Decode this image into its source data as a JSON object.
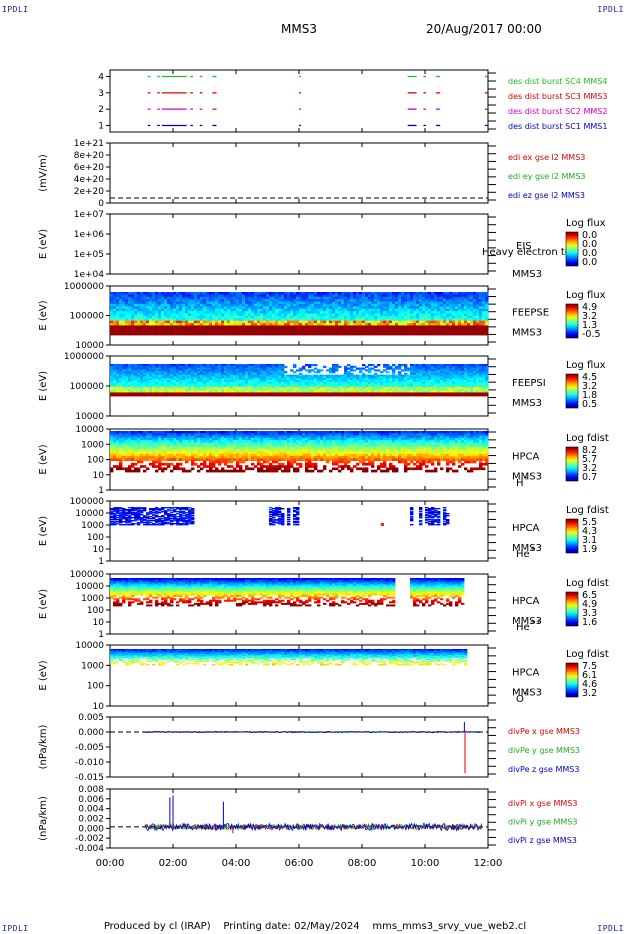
{
  "header": {
    "corner_label": "IPDLI",
    "spacecraft": "MMS3",
    "datetime": "20/Aug/2017 00:00"
  },
  "footer": {
    "produced_by": "Produced by cl (IRAP)",
    "printing_date": "Printing date: 02/May/2024",
    "script": "mms_mms3_srvy_vue_web2.cl"
  },
  "chart_data": [
    {
      "id": "burst",
      "type": "line",
      "ylabel": "",
      "y_ticks": [
        "4",
        "3",
        "2",
        "1"
      ],
      "ylim": [
        0.6,
        4.4
      ],
      "series": [
        {
          "name": "des dist burst SC1 MMS1",
          "color": "#0000cc",
          "level": 1
        },
        {
          "name": "des dist burst SC2 MMS2",
          "color": "#cc00cc",
          "level": 2
        },
        {
          "name": "des dist burst SC3 MMS3",
          "color": "#dd0000",
          "level": 3
        },
        {
          "name": "des dist burst SC4 MMS4",
          "color": "#22bb22",
          "level": 4
        }
      ],
      "intervals_hours": [
        [
          1.2,
          1.25
        ],
        [
          1.5,
          1.55
        ],
        [
          1.65,
          2.4
        ],
        [
          2.55,
          2.6
        ],
        [
          2.85,
          2.9
        ],
        [
          3.25,
          3.35
        ],
        [
          6.0,
          6.03
        ],
        [
          9.45,
          9.7
        ],
        [
          9.95,
          10.0
        ],
        [
          10.35,
          10.45
        ],
        [
          11.9,
          11.95
        ]
      ]
    },
    {
      "id": "edi",
      "type": "line",
      "ylabel": "(mV/m)",
      "y_ticks": [
        "1e+21",
        "8e+20",
        "6e+20",
        "4e+20",
        "2e+20",
        "0"
      ],
      "ylim": [
        0,
        1e+21
      ],
      "series": [
        {
          "name": "edi ex gse l2 MMS3",
          "color": "#dd0000"
        },
        {
          "name": "edi ey gse l2 MMS3",
          "color": "#22aa22"
        },
        {
          "name": "edi ez gse l2 MMS3",
          "color": "#0000cc"
        }
      ],
      "value": 0
    },
    {
      "id": "eis",
      "type": "heatmap",
      "ylabel": "E (eV)",
      "y_ticks": [
        "1e+07",
        "1e+06",
        "1e+05",
        "1e+04"
      ],
      "label": "EIS",
      "sc": "MMS3",
      "overlay_text": "Heavy electron to",
      "cbar_title": "Log flux",
      "cbar_ticks": [
        "0.0",
        "0.0",
        "0.0",
        "0.0"
      ],
      "empty": true
    },
    {
      "id": "feeps_e",
      "type": "heatmap",
      "ylabel": "E (eV)",
      "y_ticks": [
        "1000000",
        "100000",
        "10000"
      ],
      "label": "FEEPSE",
      "sc": "MMS3",
      "cbar_title": "Log flux",
      "cbar_ticks": [
        "4.9",
        "3.2",
        "1.3",
        "-0.5"
      ]
    },
    {
      "id": "feeps_i",
      "type": "heatmap",
      "ylabel": "E (eV)",
      "y_ticks": [
        "1000000",
        "100000",
        "10000"
      ],
      "label": "FEEPSI",
      "sc": "MMS3",
      "cbar_title": "Log flux",
      "cbar_ticks": [
        "4.5",
        "3.2",
        "1.8",
        "0.5"
      ]
    },
    {
      "id": "hpca_h",
      "type": "heatmap",
      "ylabel": "E (eV)",
      "y_ticks": [
        "10000",
        "1000",
        "100",
        "10",
        "1"
      ],
      "label": "HPCA",
      "sc": "MMS3",
      "species": "H",
      "charge": "+",
      "cbar_title": "Log fdist",
      "cbar_ticks": [
        "8.2",
        "5.7",
        "3.2",
        "0.7"
      ]
    },
    {
      "id": "hpca_he1",
      "type": "heatmap",
      "ylabel": "E (eV)",
      "y_ticks": [
        "100000",
        "10000",
        "1000",
        "100",
        "10",
        "1"
      ],
      "label": "HPCA",
      "sc": "MMS3",
      "species": "He",
      "charge": "+",
      "cbar_title": "Log fdist",
      "cbar_ticks": [
        "5.5",
        "4.3",
        "3.1",
        "1.9"
      ]
    },
    {
      "id": "hpca_he2",
      "type": "heatmap",
      "ylabel": "E (eV)",
      "y_ticks": [
        "100000",
        "10000",
        "1000",
        "100",
        "10",
        "1"
      ],
      "label": "HPCA",
      "sc": "MMS3",
      "species": "He",
      "charge": "++",
      "cbar_title": "Log fdist",
      "cbar_ticks": [
        "6.5",
        "4.9",
        "3.3",
        "1.6"
      ]
    },
    {
      "id": "hpca_o",
      "type": "heatmap",
      "ylabel": "E (eV)",
      "y_ticks": [
        "10000",
        "1000",
        "100",
        "10"
      ],
      "label": "HPCA",
      "sc": "MMS3",
      "species": "O",
      "charge": "+",
      "cbar_title": "Log fdist",
      "cbar_ticks": [
        "7.5",
        "6.1",
        "4.6",
        "3.2"
      ]
    },
    {
      "id": "divpe",
      "type": "line",
      "ylabel": "(nPa/km)",
      "y_ticks": [
        "0.005",
        "0.000",
        "-0.005",
        "-0.010",
        "-0.015"
      ],
      "ylim": [
        -0.018,
        0.006
      ],
      "series": [
        {
          "name": "divPe x gse MMS3",
          "color": "#dd0000"
        },
        {
          "name": "divPe y gse MMS3",
          "color": "#22aa22"
        },
        {
          "name": "divPe z gse MMS3",
          "color": "#0000cc"
        }
      ],
      "spikes": [
        {
          "t": 11.25,
          "series": 2,
          "value": 0.004
        },
        {
          "t": 11.27,
          "series": 0,
          "value": -0.0165
        }
      ]
    },
    {
      "id": "divpi",
      "type": "line",
      "ylabel": "(nPa/km)",
      "y_ticks": [
        "0.008",
        "0.006",
        "0.004",
        "0.002",
        "0.000",
        "-0.002",
        "-0.004"
      ],
      "ylim": [
        -0.005,
        0.009
      ],
      "series": [
        {
          "name": "divPi x gse MMS3",
          "color": "#dd0000"
        },
        {
          "name": "divPi y gse MMS3",
          "color": "#22aa22"
        },
        {
          "name": "divPi z gse MMS3",
          "color": "#0000cc"
        }
      ],
      "spikes": [
        {
          "t": 1.9,
          "series": 2,
          "value": 0.007
        },
        {
          "t": 2.0,
          "series": 2,
          "value": 0.0075
        },
        {
          "t": 3.6,
          "series": 2,
          "value": 0.006
        },
        {
          "t": 3.9,
          "series": 0,
          "value": -0.0015
        }
      ]
    }
  ],
  "x_axis": {
    "ticks": [
      "00:00",
      "02:00",
      "04:00",
      "06:00",
      "08:00",
      "10:00",
      "12:00"
    ],
    "range_hours": [
      0,
      12
    ]
  }
}
